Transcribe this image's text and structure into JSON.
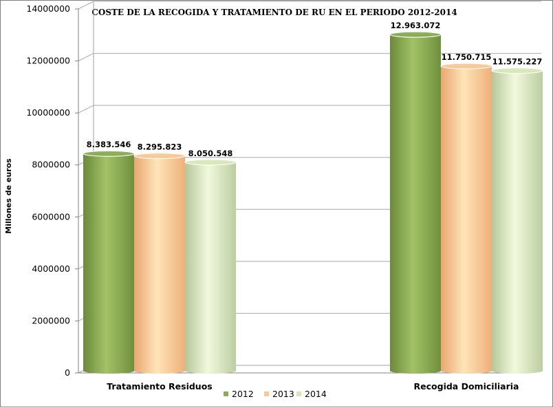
{
  "chart_data": {
    "type": "bar",
    "title": "COSTE DE LA RECOGIDA Y TRATAMIENTO DE RU EN EL PERIODO 2012-2014",
    "ylabel": "Millones de euros",
    "xlabel": "",
    "ylim": [
      0,
      14000000
    ],
    "yticks": [
      "0",
      "2000000",
      "4000000",
      "6000000",
      "8000000",
      "10000000",
      "12000000",
      "14000000"
    ],
    "ytick_values": [
      0,
      2000000,
      4000000,
      6000000,
      8000000,
      10000000,
      12000000,
      14000000
    ],
    "grid": true,
    "legend_position": "bottom-center",
    "categories": [
      "Tratamiento Residuos",
      "Recogida Domiciliaria"
    ],
    "series": [
      {
        "name": "2012",
        "values": [
          8383546,
          12963072
        ],
        "labels": [
          "8.383.546",
          "12.963.072"
        ],
        "color": "#8aac52"
      },
      {
        "name": "2013",
        "values": [
          8295823,
          11750715
        ],
        "labels": [
          "8.295.823",
          "11.750.715"
        ],
        "color": "#fac897"
      },
      {
        "name": "2014",
        "values": [
          8050548,
          11575227
        ],
        "labels": [
          "8.050.548",
          "11.575.227"
        ],
        "color": "#d7e8b8"
      }
    ]
  }
}
